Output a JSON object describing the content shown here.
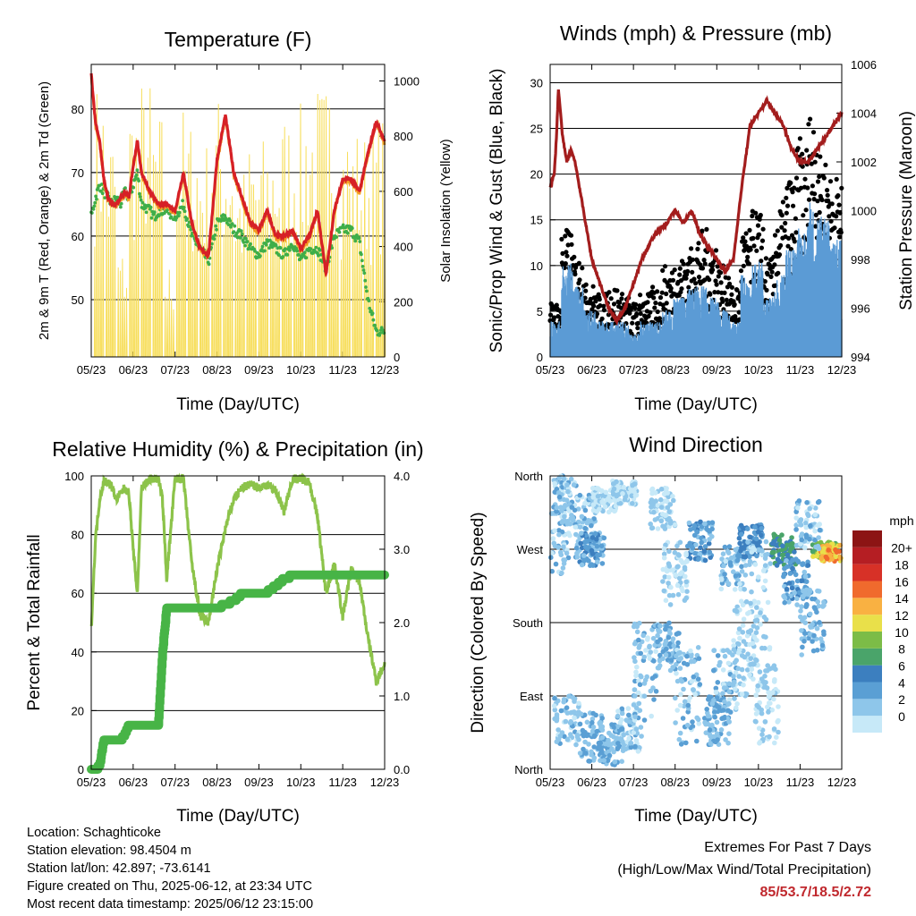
{
  "x_ticks": [
    "05/23",
    "06/23",
    "07/23",
    "08/23",
    "09/23",
    "10/23",
    "11/23",
    "12/23"
  ],
  "colors": {
    "temp_red": "#d62026",
    "temp_orange": "#f39a24",
    "dew_green": "#3fae49",
    "solar_yellow": "#f7de5c",
    "wind_blue": "#5b9bd5",
    "gust_black": "#000000",
    "pressure_maroon": "#a31d1d",
    "rh_green": "#8cc34a",
    "precip_green": "#47b446"
  },
  "chart_data": [
    {
      "id": "temperature",
      "type": "line",
      "title": "Temperature (F)",
      "xlabel": "Time (Day/UTC)",
      "ylabel": "2m & 9m T (Red, Orange) & 2m Td (Green)",
      "ylabel_right": "Solar Insolation (Yellow)",
      "ylim": [
        41,
        87
      ],
      "yticks": [
        50,
        60,
        70,
        80
      ],
      "ylim_right": [
        0,
        1060
      ],
      "yticks_right": [
        0,
        200,
        400,
        600,
        800,
        1000
      ],
      "x": [
        0,
        0.1,
        0.2,
        0.3,
        0.4,
        0.5,
        0.6,
        0.7,
        0.8,
        0.9,
        1,
        1.1,
        1.2,
        1.4,
        1.5,
        1.6,
        1.8,
        2,
        2.2,
        2.4,
        2.6,
        2.8,
        3,
        3.2,
        3.4,
        3.6,
        3.8,
        4,
        4.2,
        4.4,
        4.6,
        4.8,
        5,
        5.2,
        5.4,
        5.6,
        5.8,
        6,
        6.2,
        6.4,
        6.6,
        6.8,
        7
      ],
      "series": [
        {
          "name": "2m T",
          "color": "#d62026",
          "values": [
            85.5,
            78,
            75,
            69,
            66,
            65,
            65,
            66,
            67,
            66,
            71,
            75,
            70,
            67,
            66,
            65,
            65,
            64,
            70,
            62,
            58,
            57,
            72,
            79,
            70,
            66,
            62,
            61,
            64,
            60,
            60,
            61,
            58,
            60,
            64,
            54,
            64,
            69,
            69,
            67,
            73,
            78,
            75
          ]
        },
        {
          "name": "9m T",
          "color": "#f39a24",
          "values": [
            85,
            77.5,
            74.5,
            68.5,
            65.8,
            64.8,
            64.8,
            65.6,
            66.6,
            65.8,
            70.6,
            74.5,
            69.6,
            66.6,
            65.6,
            64.6,
            64.6,
            63.6,
            69.6,
            61.6,
            57.8,
            56.8,
            71.5,
            78.5,
            69.6,
            65.6,
            61.6,
            60.6,
            63.6,
            59.6,
            59.6,
            60.6,
            57.6,
            59.6,
            63.6,
            53.6,
            63.6,
            68.6,
            68.6,
            66.6,
            72.6,
            77.6,
            74.6
          ]
        },
        {
          "name": "2m Td",
          "color": "#3fae49",
          "values": [
            63,
            66,
            68,
            67,
            66,
            65,
            66,
            65,
            67,
            66,
            68,
            70,
            65,
            64,
            63,
            64,
            64,
            63,
            65,
            60,
            58,
            56,
            62,
            63,
            61,
            60,
            58,
            57,
            59,
            58,
            57,
            59,
            56,
            58,
            58,
            55,
            60,
            61,
            61,
            59,
            50,
            45,
            45
          ]
        }
      ],
      "solar": {
        "name": "Solar Insolation",
        "color": "#f7de5c",
        "peaks": [
          1000,
          850,
          400,
          980,
          1020,
          900,
          350,
          920,
          880,
          800,
          960,
          890,
          700,
          800,
          810,
          850,
          900,
          920,
          980,
          1000,
          1050,
          880,
          850,
          830,
          900
        ]
      }
    },
    {
      "id": "winds",
      "type": "scatter",
      "title": "Winds (mph) & Pressure (mb)",
      "xlabel": "Time (Day/UTC)",
      "ylabel": "Sonic/Prop Wind & Gust (Blue, Black)",
      "ylabel_right": "Station Pressure (Maroon)",
      "ylim": [
        0,
        32
      ],
      "yticks": [
        0,
        5,
        10,
        15,
        20,
        25,
        30
      ],
      "ylim_right": [
        994,
        1006
      ],
      "yticks_right": [
        994,
        996,
        998,
        1000,
        1002,
        1004,
        1006
      ],
      "x": [
        0,
        0.1,
        0.15,
        0.2,
        0.25,
        0.3,
        0.4,
        0.5,
        0.6,
        0.7,
        0.8,
        0.9,
        1,
        1.2,
        1.4,
        1.6,
        1.8,
        2,
        2.2,
        2.5,
        2.8,
        3,
        3.2,
        3.4,
        3.6,
        3.8,
        4,
        4.2,
        4.4,
        4.6,
        4.8,
        5,
        5.2,
        5.4,
        5.6,
        5.8,
        6,
        6.2,
        6.4,
        6.6,
        6.8,
        7
      ],
      "pressure": {
        "name": "Station Pressure",
        "color": "#a31d1d",
        "values": [
          1001,
          1001.5,
          1003,
          1005,
          1004,
          1003,
          1002,
          1002.5,
          1002,
          1001,
          1000,
          999,
          998,
          997,
          996,
          995.5,
          996,
          997,
          998,
          999,
          999.5,
          1000,
          999.5,
          1000,
          999,
          998.5,
          998,
          997.5,
          998,
          1001,
          1003.5,
          1004,
          1004.5,
          1004,
          1003.5,
          1002.5,
          1002,
          1002,
          1002.5,
          1003,
          1003.5,
          1004
        ]
      },
      "gust_level": [
        4,
        12,
        9,
        6,
        5,
        6,
        5,
        4,
        5,
        6,
        8,
        9,
        10,
        12,
        11,
        8,
        6,
        12,
        14,
        9,
        15,
        18,
        22,
        25,
        20,
        18
      ],
      "wind_level": [
        3,
        8,
        6,
        4,
        3,
        3,
        3,
        2,
        3,
        3,
        4,
        5,
        6,
        6,
        5,
        4,
        3,
        7,
        8,
        5,
        7,
        9,
        11,
        13,
        12,
        10
      ]
    },
    {
      "id": "humidity",
      "type": "line",
      "title": "Relative Humidity (%) & Precipitation (in)",
      "xlabel": "Time (Day/UTC)",
      "ylabel": "Percent & Total Rainfall",
      "ylim": [
        0,
        100
      ],
      "yticks": [
        0,
        20,
        40,
        60,
        80,
        100
      ],
      "ylim_right": [
        0,
        4
      ],
      "yticks_right": [
        "0.0",
        "1.0",
        "2.0",
        "3.0",
        "4.0"
      ],
      "x": [
        0,
        0.1,
        0.2,
        0.3,
        0.4,
        0.5,
        0.6,
        0.7,
        0.8,
        0.9,
        1,
        1.1,
        1.2,
        1.4,
        1.6,
        1.7,
        1.8,
        2,
        2.2,
        2.4,
        2.6,
        2.8,
        3,
        3.2,
        3.4,
        3.6,
        3.8,
        4,
        4.2,
        4.4,
        4.6,
        4.8,
        5,
        5.2,
        5.4,
        5.6,
        5.8,
        6,
        6.2,
        6.4,
        6.6,
        6.8,
        7
      ],
      "series": [
        {
          "name": "Relative Humidity",
          "color": "#8cc34a",
          "values": [
            48,
            78,
            92,
            98,
            98,
            96,
            92,
            94,
            96,
            94,
            75,
            60,
            96,
            99,
            99,
            92,
            65,
            99,
            99,
            70,
            52,
            50,
            68,
            82,
            92,
            96,
            97,
            96,
            97,
            95,
            88,
            99,
            99,
            98,
            86,
            60,
            70,
            52,
            68,
            64,
            45,
            30,
            36
          ]
        },
        {
          "name": "Total Precipitation",
          "color": "#47b446",
          "values": [
            0,
            0,
            0.05,
            0.4,
            0.4,
            0.4,
            0.4,
            0.4,
            0.48,
            0.6,
            0.6,
            0.62,
            0.62,
            0.62,
            0.62,
            1.6,
            2.2,
            2.2,
            2.2,
            2.2,
            2.2,
            2.2,
            2.2,
            2.25,
            2.3,
            2.4,
            2.4,
            2.4,
            2.42,
            2.5,
            2.6,
            2.64,
            2.64,
            2.64,
            2.64,
            2.64,
            2.64,
            2.64,
            2.64,
            2.64,
            2.64,
            2.64,
            2.64
          ]
        }
      ]
    },
    {
      "id": "direction",
      "type": "scatter",
      "title": "Wind Direction",
      "xlabel": "Time (Day/UTC)",
      "ylabel": "Direction (Colored By Speed)",
      "ylim": [
        0,
        360
      ],
      "yticks": [
        0,
        90,
        180,
        270,
        360
      ],
      "ytick_labels": [
        "North",
        "East",
        "South",
        "West",
        "North"
      ],
      "colorbar": {
        "title": "mph",
        "labels": [
          "0",
          "2",
          "4",
          "6",
          "8",
          "10",
          "12",
          "14",
          "16",
          "18",
          "20+"
        ],
        "colors": [
          "#c7e9f8",
          "#8ec6ea",
          "#5a9fd4",
          "#3c7fbf",
          "#4aa46a",
          "#7cbc47",
          "#e9e04a",
          "#f9b142",
          "#f06a2d",
          "#d73127",
          "#b51e23",
          "#8c1414"
        ]
      }
    }
  ],
  "footer": {
    "location": "Location: Schaghticoke",
    "elevation": "Station elevation: 98.4504 m",
    "latlon": "Station lat/lon: 42.897; -73.6141",
    "created": "Figure created on Thu, 2025-06-12, at 23:34 UTC",
    "recent": "Most recent data timestamp: 2025/06/12 23:15:00",
    "extremes_title": "Extremes For Past 7 Days",
    "extremes_sub": "(High/Low/Max Wind/Total Precipitation)",
    "extremes_values": "85/53.7/18.5/2.72"
  }
}
